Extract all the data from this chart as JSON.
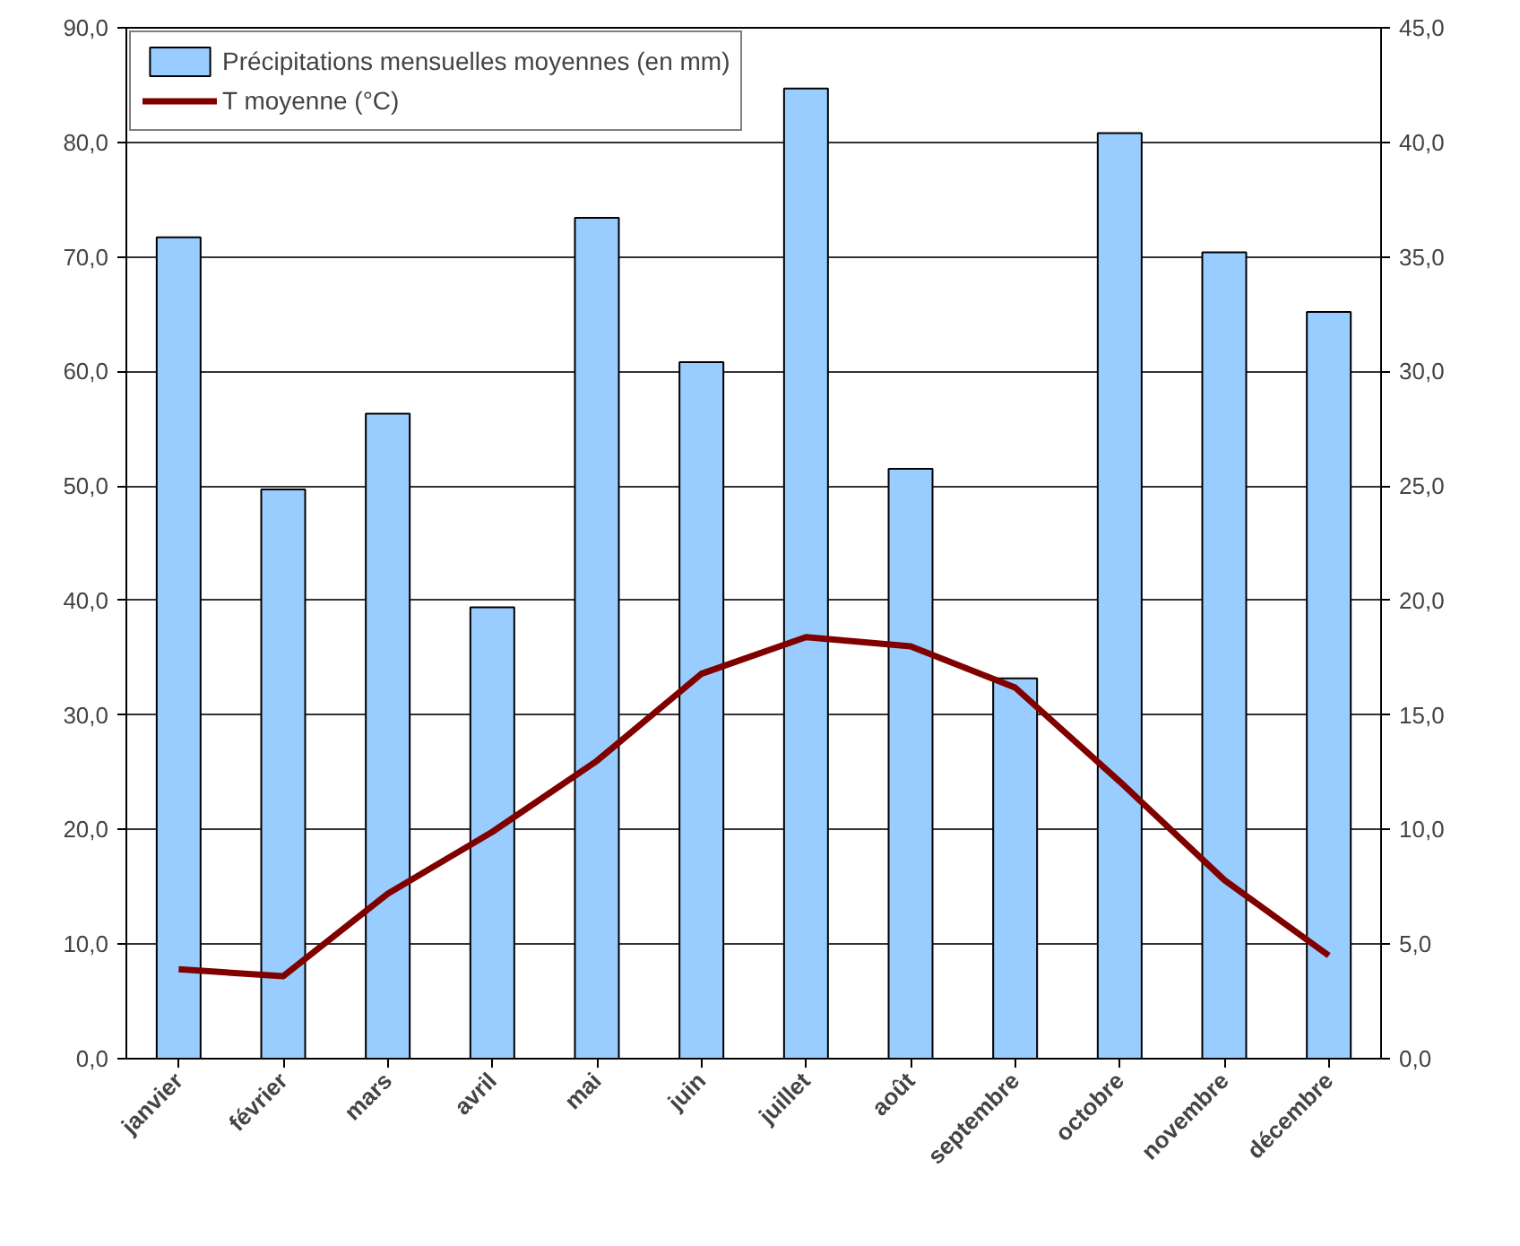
{
  "chart_data": {
    "type": "bar",
    "categories": [
      "janvier",
      "février",
      "mars",
      "avril",
      "mai",
      "juin",
      "juillet",
      "août",
      "septembre",
      "octobre",
      "novembre",
      "décembre"
    ],
    "series": [
      {
        "name": "Précipitations mensuelles moyennes (en mm)",
        "color": "#99ccff",
        "values": [
          71.7,
          49.7,
          56.3,
          39.4,
          73.4,
          60.8,
          84.7,
          51.5,
          33.2,
          80.8,
          70.4,
          65.2
        ]
      },
      {
        "name": "T moyenne (°C)",
        "type": "line",
        "axis": "y2",
        "color": "#800000",
        "values": [
          3.9,
          3.6,
          7.2,
          9.9,
          13.0,
          16.8,
          18.4,
          18.0,
          16.2,
          12.1,
          7.8,
          4.5
        ]
      }
    ],
    "ylim": [
      0,
      90
    ],
    "yticks": [
      {
        "value": 0,
        "label": "0,0"
      },
      {
        "value": 10,
        "label": "10,0"
      },
      {
        "value": 20,
        "label": "20,0"
      },
      {
        "value": 30,
        "label": "30,0"
      },
      {
        "value": 40,
        "label": "40,0"
      },
      {
        "value": 50,
        "label": "50,0"
      },
      {
        "value": 60,
        "label": "60,0"
      },
      {
        "value": 70,
        "label": "70,0"
      },
      {
        "value": 80,
        "label": "80,0"
      },
      {
        "value": 90,
        "label": "90,0"
      }
    ],
    "y2lim": [
      0,
      45
    ],
    "y2ticks": [
      {
        "value": 0,
        "label": "0,0"
      },
      {
        "value": 5,
        "label": "5,0"
      },
      {
        "value": 10,
        "label": "10,0"
      },
      {
        "value": 15,
        "label": "15,0"
      },
      {
        "value": 20,
        "label": "20,0"
      },
      {
        "value": 25,
        "label": "25,0"
      },
      {
        "value": 30,
        "label": "30,0"
      },
      {
        "value": 35,
        "label": "35,0"
      },
      {
        "value": 40,
        "label": "40,0"
      },
      {
        "value": 45,
        "label": "45,0"
      }
    ],
    "grid": "y",
    "legend": "top left",
    "marker": "none",
    "line_style": "solid"
  }
}
